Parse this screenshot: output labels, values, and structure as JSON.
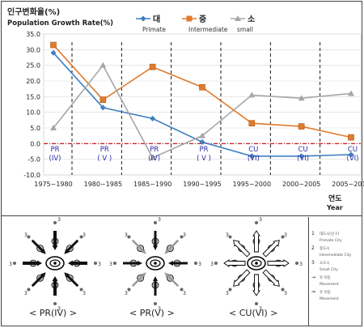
{
  "chart_data": {
    "type": "line",
    "title_ko": "인구변화율(%)",
    "title_en": "Population Growth Rate(%)",
    "x_label_ko": "연도",
    "x_label_en": "Year",
    "categories": [
      "1975~1980",
      "1980~1985",
      "1985~1990",
      "1990~1995",
      "1995~2000",
      "2000~2005",
      "2005~2010"
    ],
    "ylim": [
      -10,
      35
    ],
    "yticks": [
      "35.0",
      "30.0",
      "25.0",
      "20.0",
      "15.0",
      "10.0",
      "5.0",
      "0.0",
      "-5.0",
      "-10.0"
    ],
    "series": [
      {
        "key": "primate",
        "ko": "대",
        "en": "Primate",
        "color": "#3f7fc0",
        "marker": "diamond",
        "values": [
          29.0,
          11.5,
          8.0,
          0.5,
          -4.0,
          -4.0,
          -3.5
        ]
      },
      {
        "key": "intermediate",
        "ko": "중",
        "en": "Intermediate",
        "color": "#e07b2e",
        "marker": "square",
        "values": [
          31.5,
          14.0,
          24.5,
          18.0,
          6.5,
          5.5,
          2.0
        ]
      },
      {
        "key": "small",
        "ko": "소",
        "en": "small",
        "color": "#a6a6a6",
        "marker": "triangle",
        "values": [
          5.0,
          25.0,
          -4.5,
          2.5,
          15.5,
          14.5,
          16.0
        ]
      }
    ],
    "stage_labels": [
      {
        "line1": "PR",
        "line2": "(IV)"
      },
      {
        "line1": "PR",
        "line2": "( V )"
      },
      {
        "line1": "PR",
        "line2": "(IV)"
      },
      {
        "line1": "PR",
        "line2": "( V )"
      },
      {
        "line1": "CU",
        "line2": "(VI)"
      },
      {
        "line1": "CU",
        "line2": "(VI)"
      },
      {
        "line1": "CU",
        "line2": "(VI)"
      }
    ],
    "zero_line_color": "#c00000",
    "stage_label_color": "#2a2aa8"
  },
  "diagrams": [
    {
      "caption": "< PR(IV) >",
      "rank_labels": [
        "3",
        "3",
        "3",
        "3",
        "3",
        "3",
        "3",
        "3"
      ]
    },
    {
      "caption": "< PR(V) >",
      "rank_labels": [
        "3",
        "3",
        "3",
        "3",
        "3",
        "3",
        "3",
        "3"
      ]
    },
    {
      "caption": "< CU(VI) >",
      "rank_labels": [
        "3",
        "3",
        "3",
        "3",
        "3",
        "3",
        "3",
        "3"
      ]
    }
  ],
  "diagram_legend": [
    {
      "symbol": "1",
      "text": "대도시(인구)"
    },
    {
      "symbol": "",
      "text": "Primate City"
    },
    {
      "symbol": "2",
      "text": "중도시"
    },
    {
      "symbol": "",
      "text": "Intermediate City"
    },
    {
      "symbol": "3",
      "text": "소도시"
    },
    {
      "symbol": "",
      "text": "Small City"
    },
    {
      "symbol": "→",
      "text": "유 이동"
    },
    {
      "symbol": "",
      "text": "Movement"
    },
    {
      "symbol": "⇒",
      "text": "유 이동"
    },
    {
      "symbol": "",
      "text": "Movement"
    }
  ]
}
